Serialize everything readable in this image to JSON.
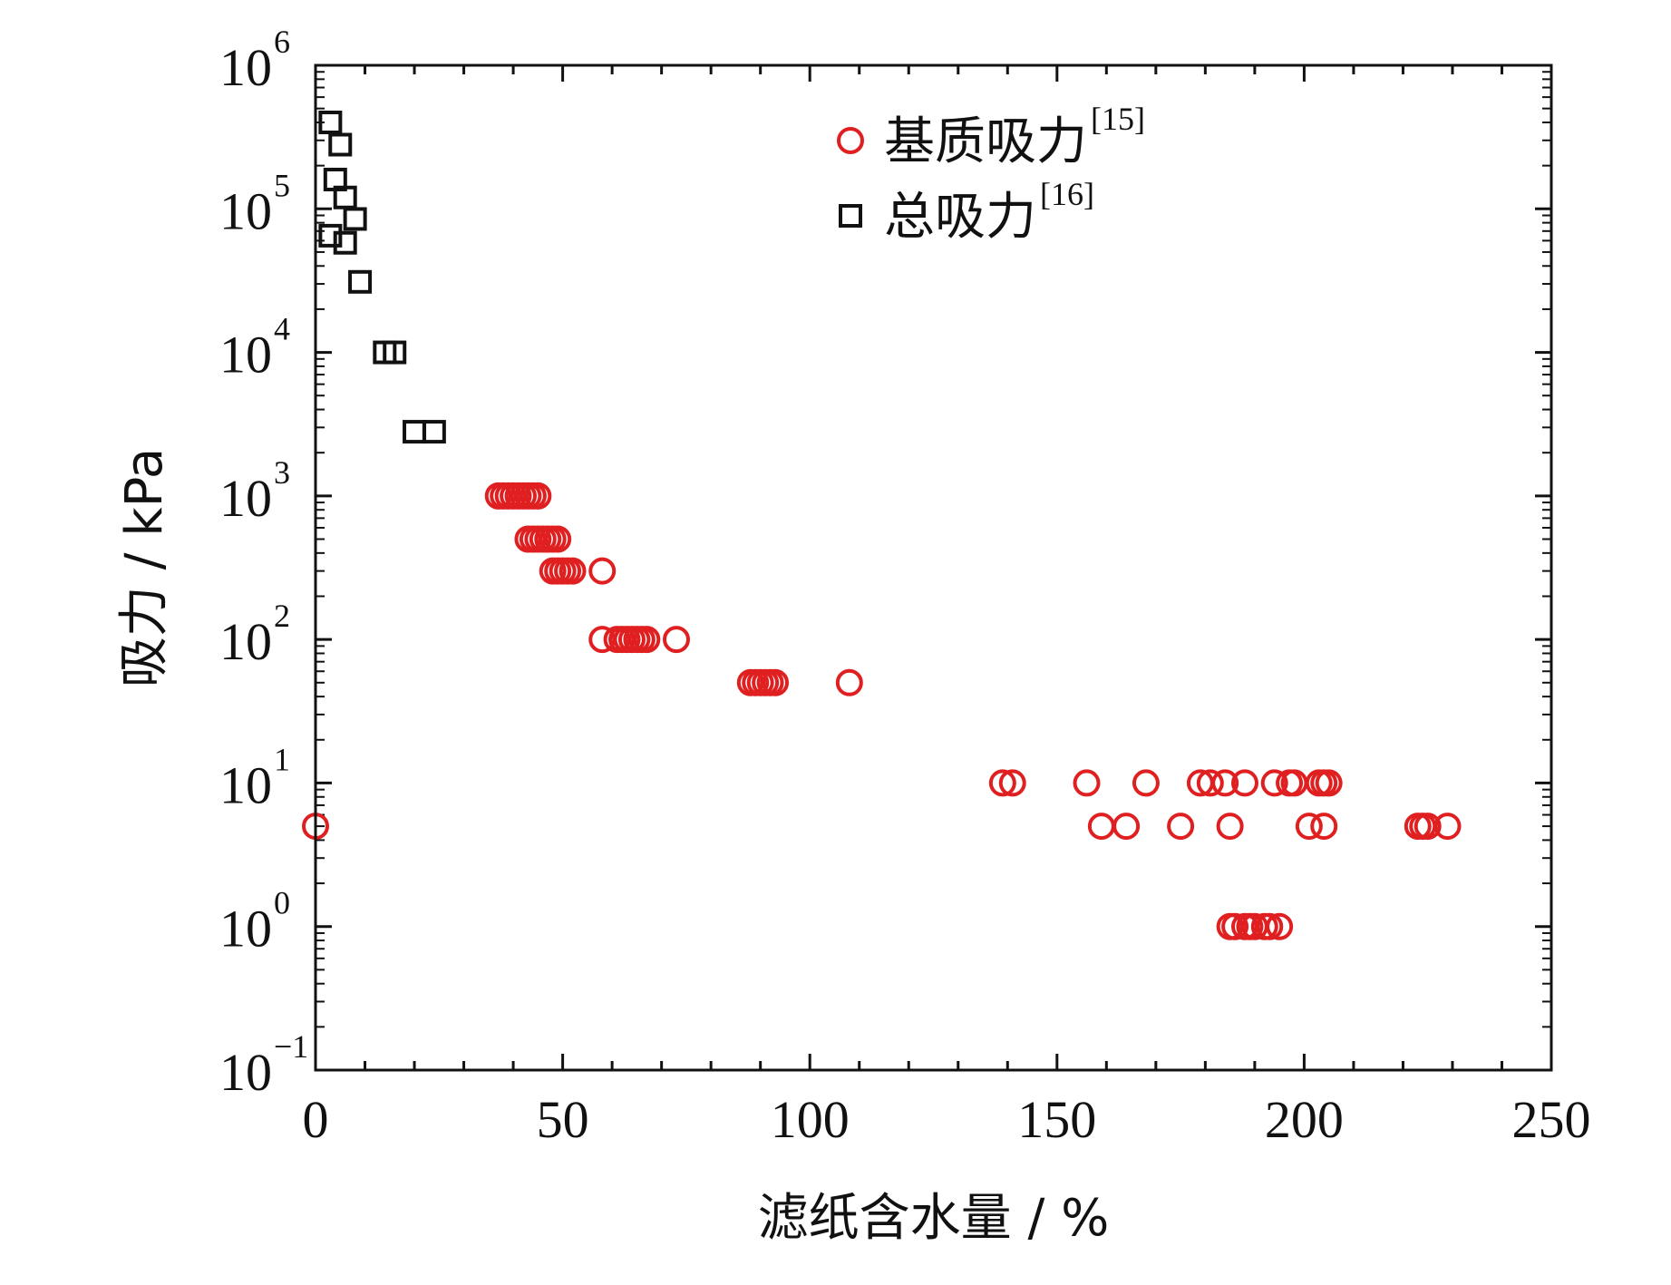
{
  "chart_data": {
    "type": "scatter",
    "title": "",
    "xlabel": "滤纸含水量 / %",
    "ylabel": "吸力 / kPa",
    "xlim": [
      0,
      250
    ],
    "ylim": [
      0.1,
      1000000
    ],
    "yscale": "log",
    "grid": false,
    "legend_position": "top-right",
    "x_ticks": [
      "0",
      "50",
      "100",
      "150",
      "200",
      "250"
    ],
    "y_tick_exponents": [
      "−1",
      "0",
      "1",
      "2",
      "3",
      "4",
      "5",
      "6"
    ],
    "y_tick_base": "10",
    "series": [
      {
        "name": "基质吸力",
        "ref": "[15]",
        "marker": "circle",
        "color": "#e02020",
        "points": [
          [
            0,
            5
          ],
          [
            37,
            1000
          ],
          [
            38,
            1000
          ],
          [
            39,
            1000
          ],
          [
            40,
            1000
          ],
          [
            41,
            1000
          ],
          [
            42,
            1000
          ],
          [
            43,
            1000
          ],
          [
            44,
            1000
          ],
          [
            45,
            1000
          ],
          [
            43,
            500
          ],
          [
            44,
            500
          ],
          [
            45,
            500
          ],
          [
            46,
            500
          ],
          [
            47,
            500
          ],
          [
            48,
            500
          ],
          [
            49,
            500
          ],
          [
            48,
            300
          ],
          [
            49,
            300
          ],
          [
            50,
            300
          ],
          [
            51,
            300
          ],
          [
            52,
            300
          ],
          [
            58,
            300
          ],
          [
            58,
            100
          ],
          [
            61,
            100
          ],
          [
            62,
            100
          ],
          [
            63,
            100
          ],
          [
            64,
            100
          ],
          [
            65,
            100
          ],
          [
            66,
            100
          ],
          [
            67,
            100
          ],
          [
            73,
            100
          ],
          [
            88,
            50
          ],
          [
            89,
            50
          ],
          [
            90,
            50
          ],
          [
            91,
            50
          ],
          [
            92,
            50
          ],
          [
            93,
            50
          ],
          [
            108,
            50
          ],
          [
            139,
            10
          ],
          [
            141,
            10
          ],
          [
            156,
            10
          ],
          [
            168,
            10
          ],
          [
            179,
            10
          ],
          [
            181,
            10
          ],
          [
            184,
            10
          ],
          [
            188,
            10
          ],
          [
            194,
            10
          ],
          [
            197,
            10
          ],
          [
            198,
            10
          ],
          [
            203,
            10
          ],
          [
            204,
            10
          ],
          [
            205,
            10
          ],
          [
            159,
            5
          ],
          [
            164,
            5
          ],
          [
            175,
            5
          ],
          [
            185,
            5
          ],
          [
            201,
            5
          ],
          [
            204,
            5
          ],
          [
            223,
            5
          ],
          [
            224,
            5
          ],
          [
            225,
            5
          ],
          [
            229,
            5
          ],
          [
            185,
            1
          ],
          [
            186,
            1
          ],
          [
            188,
            1
          ],
          [
            189,
            1
          ],
          [
            190,
            1
          ],
          [
            192,
            1
          ],
          [
            193,
            1
          ],
          [
            195,
            1
          ]
        ]
      },
      {
        "name": "总吸力",
        "ref": "[16]",
        "marker": "square",
        "color": "#111111",
        "points": [
          [
            3,
            400000
          ],
          [
            5,
            280000
          ],
          [
            4,
            160000
          ],
          [
            6,
            120000
          ],
          [
            8,
            85000
          ],
          [
            3,
            65000
          ],
          [
            6,
            58000
          ],
          [
            9,
            31000
          ],
          [
            14,
            10000
          ],
          [
            16,
            10000
          ],
          [
            20,
            2800
          ],
          [
            24,
            2800
          ]
        ]
      }
    ]
  }
}
